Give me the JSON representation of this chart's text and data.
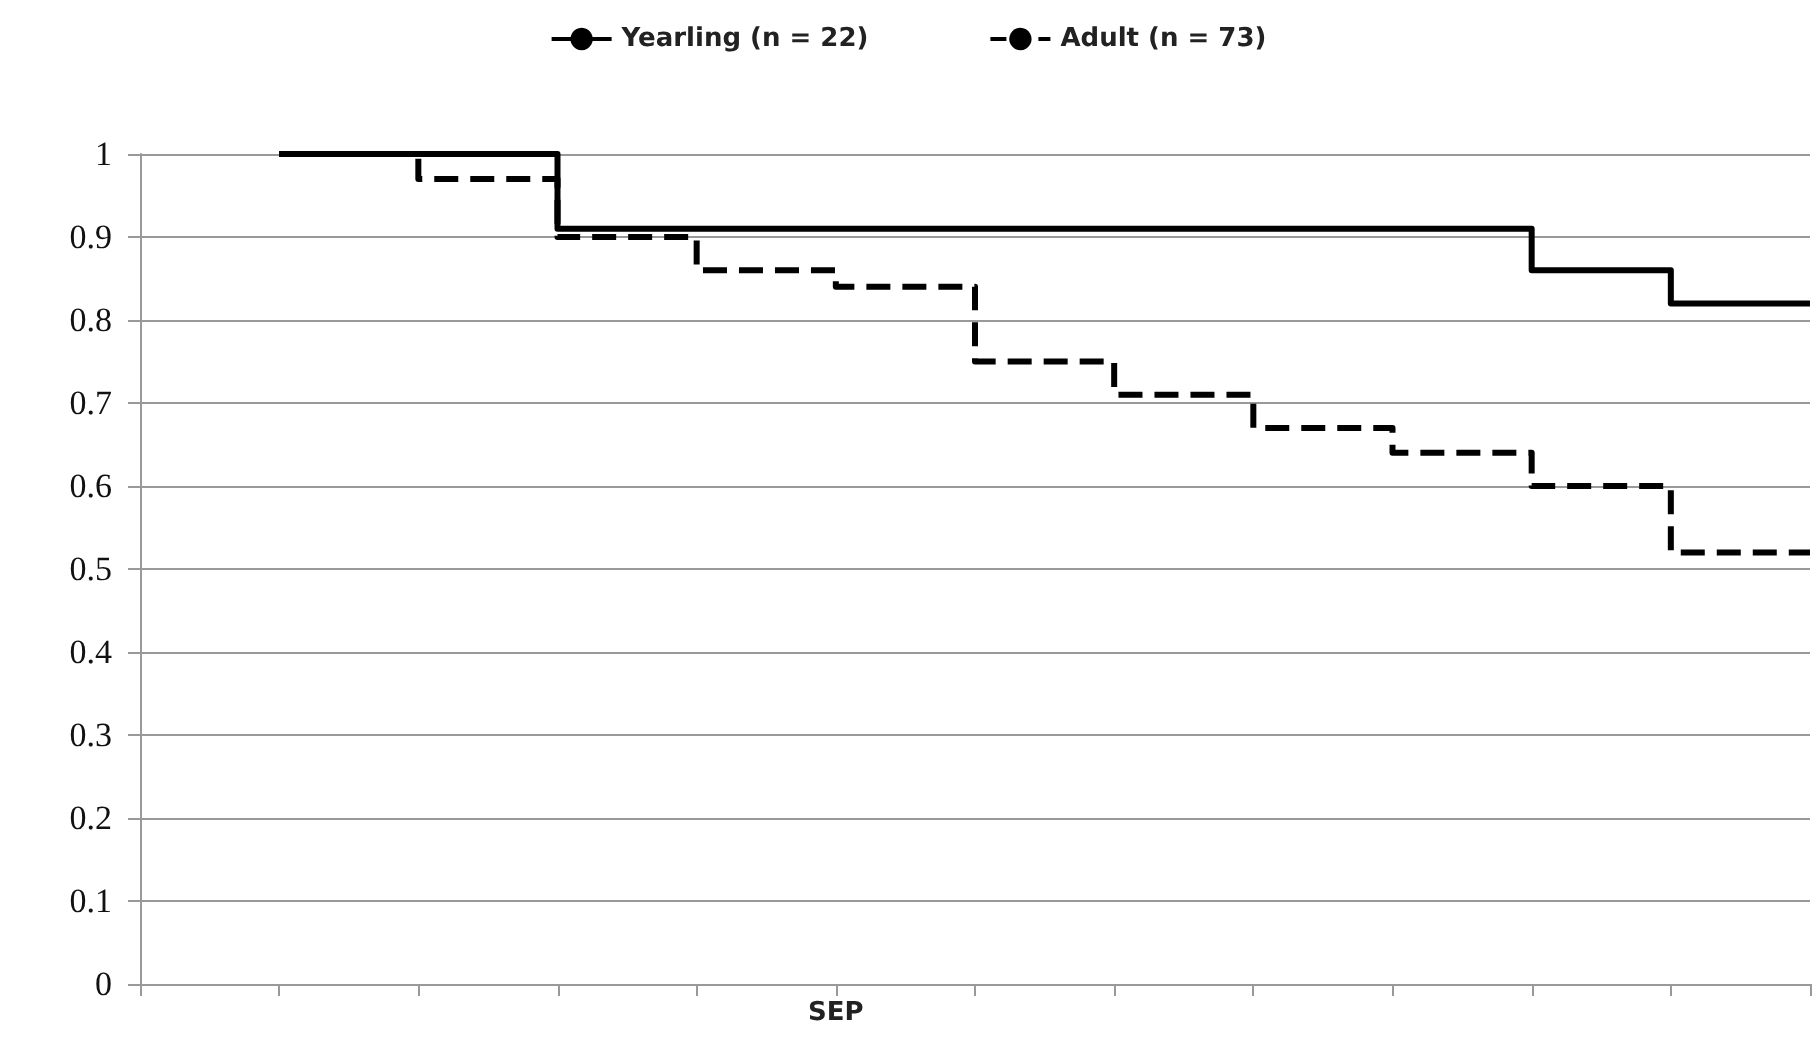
{
  "chart_data": {
    "type": "step",
    "categories": [
      null,
      null,
      null,
      null,
      null,
      "SEP",
      null,
      null,
      null,
      null,
      null,
      null,
      null
    ],
    "series": [
      {
        "name": "Yearling (n = 22)",
        "color": "#000000",
        "line_style": "solid",
        "values": [
          null,
          1,
          1,
          0.91,
          0.91,
          0.91,
          0.91,
          0.91,
          0.91,
          0.91,
          0.86,
          0.82,
          0.82
        ]
      },
      {
        "name": "Adult (n = 73)",
        "color": "#000000",
        "line_style": "dashed",
        "values": [
          null,
          1,
          0.97,
          0.9,
          0.86,
          0.84,
          0.75,
          0.71,
          0.67,
          0.64,
          0.6,
          0.52,
          0.52
        ]
      }
    ],
    "ylim": [
      0,
      1
    ],
    "yticks": [
      0,
      0.1,
      0.2,
      0.3,
      0.4,
      0.5,
      0.6,
      0.7,
      0.8,
      0.9,
      1
    ],
    "grid": "y",
    "legend": "top",
    "marker": "none"
  }
}
